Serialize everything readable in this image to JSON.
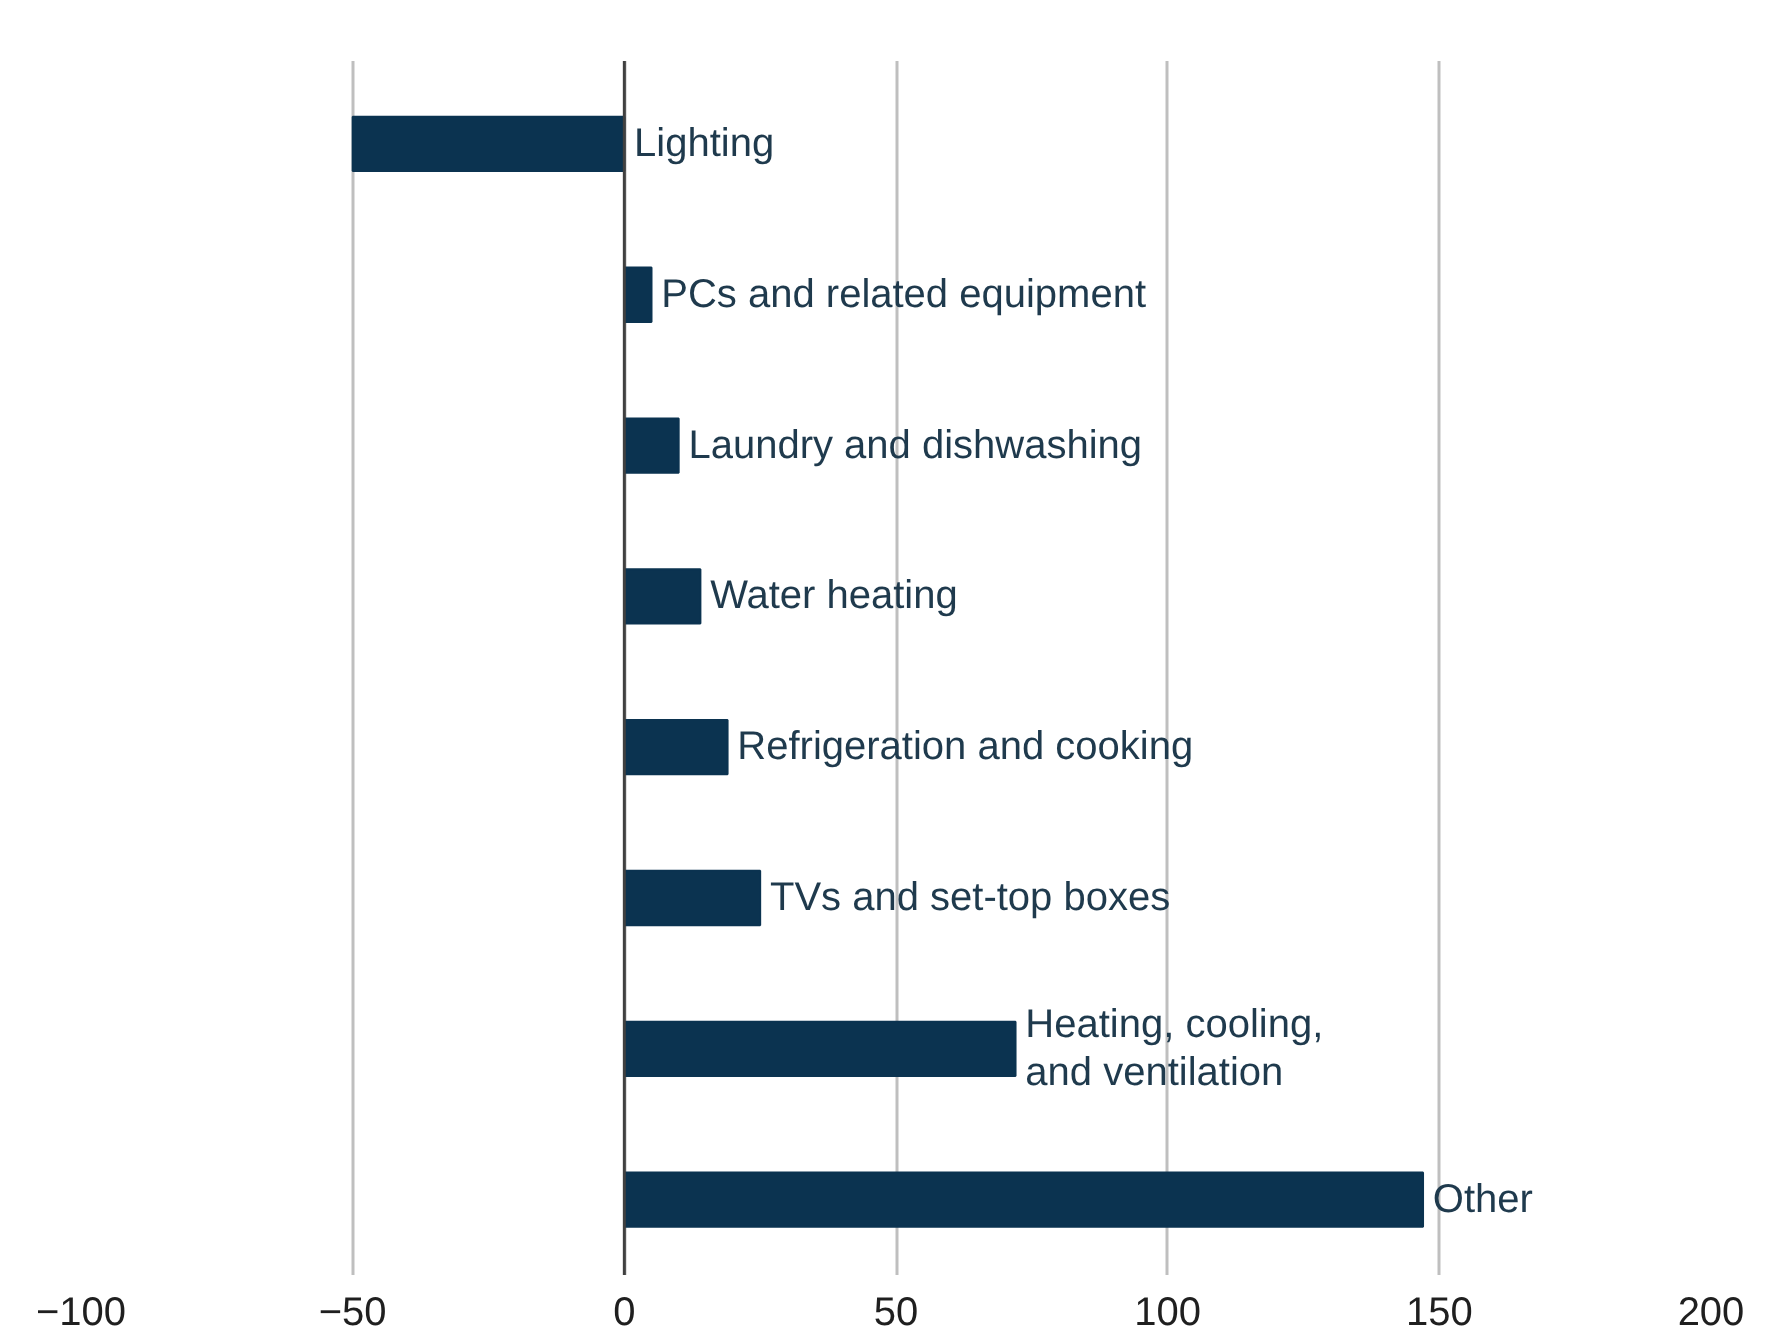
{
  "chart_data": {
    "type": "bar",
    "orientation": "horizontal",
    "categories": [
      "Lighting",
      "PCs and related equipment",
      "Laundry and dishwashing",
      "Water heating",
      "Refrigeration and cooking",
      "TVs and set-top boxes",
      "Heating, cooling,\nand ventilation",
      "Other"
    ],
    "values": [
      -50,
      5,
      10,
      14,
      19,
      25,
      72,
      147
    ],
    "color": "#0b3350",
    "xlim": [
      -100,
      200
    ],
    "xticks": [
      -100,
      -50,
      0,
      50,
      100,
      150,
      200
    ],
    "grid": "x",
    "tick_labels": "x"
  }
}
